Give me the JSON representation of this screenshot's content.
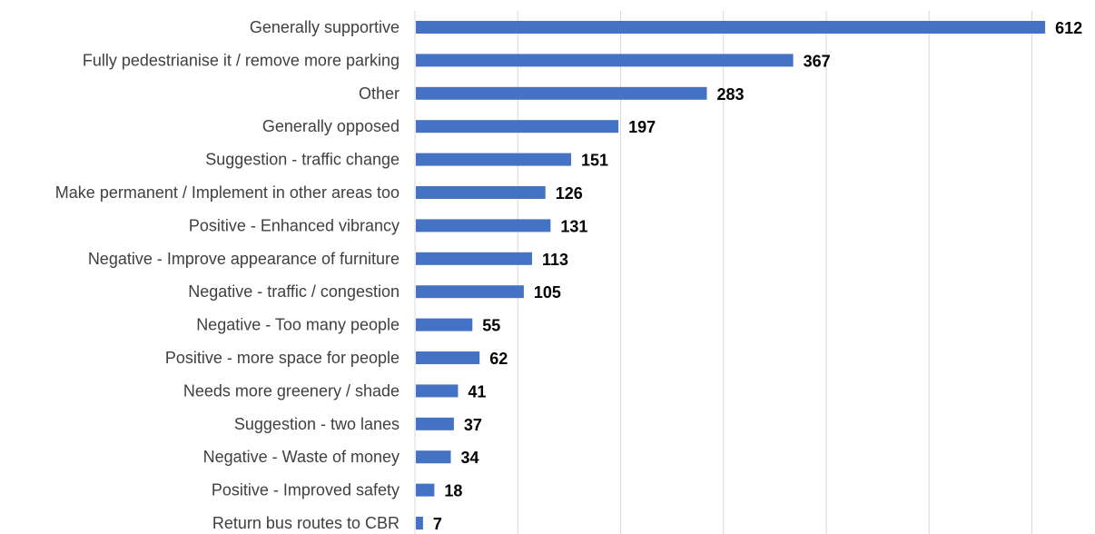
{
  "chart_data": {
    "type": "bar",
    "orientation": "horizontal",
    "categories": [
      "Generally supportive",
      "Fully pedestrianise it / remove more parking",
      "Other",
      "Generally opposed",
      "Suggestion - traffic change",
      "Make permanent / Implement in other areas too",
      "Positive - Enhanced vibrancy",
      "Negative - Improve appearance of furniture",
      "Negative - traffic / congestion",
      "Negative - Too many people",
      "Positive - more space for people",
      "Needs more greenery / shade",
      "Suggestion - two lanes",
      "Negative - Waste of money",
      "Positive - Improved safety",
      "Return bus routes to CBR"
    ],
    "values": [
      612,
      367,
      283,
      197,
      151,
      126,
      131,
      113,
      105,
      55,
      62,
      41,
      37,
      34,
      18,
      7
    ],
    "title": "",
    "xlabel": "",
    "ylabel": "",
    "xlim": [
      0,
      700
    ],
    "grid": true,
    "legend": "none",
    "data_labels": true,
    "bar_color": "#4472c4"
  }
}
